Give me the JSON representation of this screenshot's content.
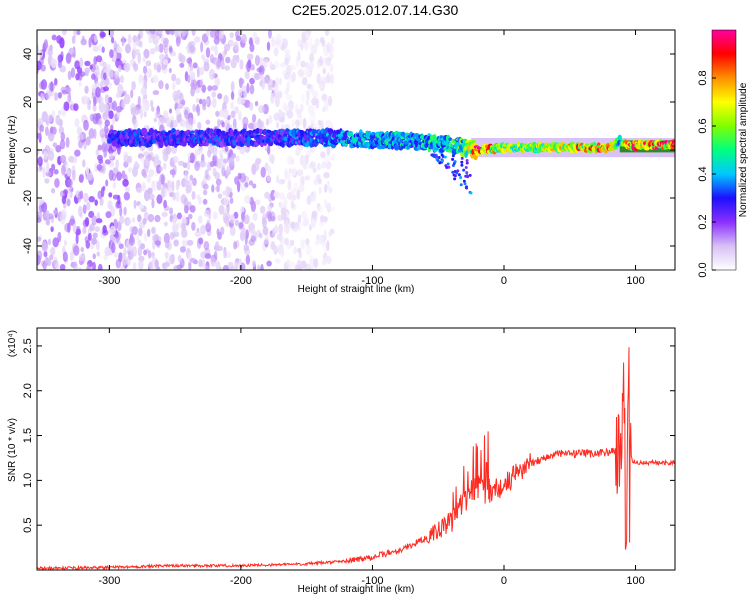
{
  "page": {
    "title": "C2E5.2025.012.07.14.G30"
  },
  "colors": {
    "snr_line": "#ff2a20",
    "spectrogram_low": "#c9a8f0",
    "spectrogram_core": "#5a16e6",
    "band_fill": "#2f8a2f",
    "colorbar_stops": [
      "#ffffff",
      "#d8c0f5",
      "#8a30ff",
      "#1c10ff",
      "#00c8ff",
      "#00ff80",
      "#80ff00",
      "#ffff00",
      "#ff9000",
      "#ff0000",
      "#ff00a0"
    ]
  },
  "chart_data": [
    {
      "id": "spectrogram",
      "type": "heatmap",
      "xlabel": "Height of straight line (km)",
      "ylabel": "Frequency (Hz)",
      "xlim": [
        -355,
        130
      ],
      "ylim": [
        -50,
        50
      ],
      "xticks": [
        -300,
        -200,
        -100,
        0,
        100
      ],
      "xtick_labels": [
        "-300",
        "-200",
        "-100",
        "0",
        "100"
      ],
      "yticks": [
        -40,
        -20,
        0,
        20,
        40
      ],
      "ytick_labels": [
        "-40",
        "-20",
        "0",
        "20",
        "40"
      ],
      "colorbar": {
        "label": "Normalized spectral amplitude",
        "ticks": [
          0.0,
          0.2,
          0.4,
          0.6,
          0.8
        ],
        "tick_labels": [
          "0.0",
          "0.2",
          "0.4",
          "0.6",
          "0.8"
        ],
        "range": [
          0,
          1
        ]
      },
      "ridge": {
        "x": [
          -300,
          -250,
          -200,
          -150,
          -120,
          -100,
          -80,
          -60,
          -40,
          -30,
          -20,
          0,
          20,
          50,
          80,
          88,
          95,
          130
        ],
        "freq": [
          5,
          5,
          5,
          5,
          5,
          4,
          4,
          3,
          2,
          1,
          0,
          1,
          1,
          1,
          1,
          4,
          2,
          2
        ],
        "amplitude": [
          0.3,
          0.3,
          0.3,
          0.33,
          0.4,
          0.42,
          0.45,
          0.45,
          0.48,
          0.55,
          0.9,
          0.62,
          0.62,
          0.75,
          0.8,
          0.4,
          0.85,
          0.85
        ]
      },
      "noise_spread_hz": [
        {
          "x_from": -355,
          "x_to": -285,
          "amplitude": 0.17
        },
        {
          "x_from": -285,
          "x_to": -265,
          "amplitude": 0.12
        },
        {
          "x_from": -265,
          "x_to": -175,
          "amplitude": 0.14
        },
        {
          "x_from": -175,
          "x_to": -130,
          "amplitude": 0.06
        }
      ]
    },
    {
      "id": "snr",
      "type": "line",
      "xlabel": "Height of straight line (km)",
      "ylabel": "SNR (10 * v/v)",
      "scale_note": "(x10⁴)",
      "xlim": [
        -355,
        130
      ],
      "ylim": [
        0,
        2.7
      ],
      "xticks": [
        -300,
        -200,
        -100,
        0,
        100
      ],
      "xtick_labels": [
        "-300",
        "-200",
        "-100",
        "0",
        "100"
      ],
      "yticks": [
        0.5,
        1.0,
        1.5,
        2.0,
        2.5
      ],
      "ytick_labels": [
        "0.5",
        "1.0",
        "1.5",
        "2.0",
        "2.5"
      ],
      "series": [
        {
          "x": [
            -355,
            -300,
            -250,
            -200,
            -150,
            -120,
            -100,
            -80,
            -60,
            -40,
            -30,
            -20,
            -10,
            0,
            10,
            20,
            30,
            40,
            60,
            80,
            88,
            92,
            95,
            100,
            130
          ],
          "y": [
            0.02,
            0.03,
            0.05,
            0.05,
            0.07,
            0.1,
            0.15,
            0.22,
            0.35,
            0.55,
            0.8,
            0.95,
            0.9,
            0.95,
            1.1,
            1.2,
            1.25,
            1.3,
            1.3,
            1.32,
            1.35,
            2.0,
            1.25,
            1.2,
            1.2
          ]
        }
      ]
    }
  ]
}
